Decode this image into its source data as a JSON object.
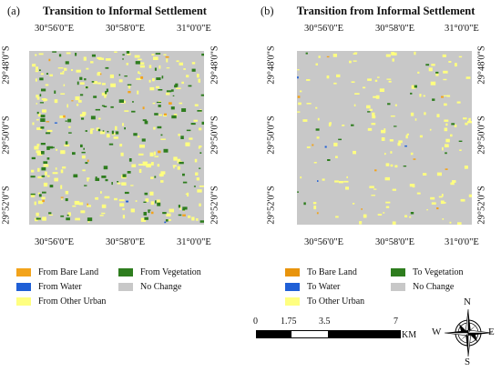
{
  "panels": [
    {
      "tag": "(a)",
      "title": "Transition to Informal Settlement",
      "top_coords": [
        "30°56'0\"E",
        "30°58'0\"E",
        "31°0'0\"E"
      ],
      "bottom_coords": [
        "30°56'0\"E",
        "30°58'0\"E",
        "31°0'0\"E"
      ],
      "left_coords": [
        "29°48'0\"S",
        "29°50'0\"S",
        "29°52'0\"S"
      ],
      "right_coords": [
        "29°48'0\"S",
        "29°50'0\"S",
        "29°52'0\"S"
      ],
      "legend": [
        {
          "label": "From Bare Land",
          "color": "#f2a31b"
        },
        {
          "label": "From Vegetation",
          "color": "#2e7d1e"
        },
        {
          "label": "From Water",
          "color": "#1f5fd6"
        },
        {
          "label": "No Change",
          "color": "#c8c8c8"
        },
        {
          "label": "From Other Urban",
          "color": "#ffff80"
        }
      ]
    },
    {
      "tag": "(b)",
      "title": "Transition from Informal Settlement",
      "top_coords": [
        "30°56'0\"E",
        "30°58'0\"E",
        "31°0'0\"E"
      ],
      "bottom_coords": [
        "30°56'0\"E",
        "30°58'0\"E",
        "31°0'0\"E"
      ],
      "left_coords": [
        "29°48'0\"S",
        "29°50'0\"S",
        "29°52'0\"S"
      ],
      "right_coords": [
        "29°48'0\"S",
        "29°50'0\"S",
        "29°52'0\"S"
      ],
      "legend": [
        {
          "label": "To Bare Land",
          "color": "#e8940c"
        },
        {
          "label": "To Vegetation",
          "color": "#2e7d1e"
        },
        {
          "label": "To Water",
          "color": "#1f5fd6"
        },
        {
          "label": "No Change",
          "color": "#c8c8c8"
        },
        {
          "label": "To Other Urban",
          "color": "#ffff80"
        }
      ]
    }
  ],
  "scale_bar": {
    "ticks": [
      "0",
      "1.75",
      "3.5",
      "7"
    ],
    "unit": "KM"
  },
  "compass": {
    "icon": "north-arrow-compass-rose-icon",
    "north": "N",
    "south": "S",
    "east": "E",
    "west": "W"
  },
  "colors": {
    "no_change": "#c8c8c8",
    "urban": "#ffff80",
    "vegetation": "#2e7d1e",
    "bare_land": "#f2a31b",
    "water": "#1f5fd6"
  }
}
